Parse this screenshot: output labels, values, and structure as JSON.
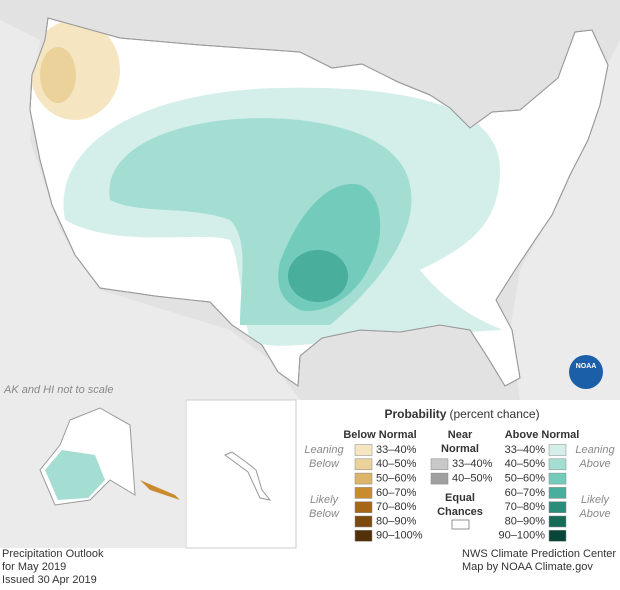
{
  "map": {
    "scale_note": "AK and HI not to scale",
    "logo": "NOAA"
  },
  "legend": {
    "title": "Probability",
    "subtitle": "(percent chance)",
    "below": {
      "header": "Below Normal",
      "leaning": [
        "Leaning",
        "Below"
      ],
      "likely": [
        "Likely",
        "Below"
      ],
      "ranges": [
        {
          "label": "33–40%",
          "color": "#f5e6c1"
        },
        {
          "label": "40–50%",
          "color": "#ebd29b"
        },
        {
          "label": "50–60%",
          "color": "#dcb56b"
        },
        {
          "label": "60–70%",
          "color": "#c98b2e"
        },
        {
          "label": "70–80%",
          "color": "#a5661a"
        },
        {
          "label": "80–90%",
          "color": "#7d4a0e"
        },
        {
          "label": "90–100%",
          "color": "#52300a"
        }
      ]
    },
    "near": {
      "header": [
        "Near",
        "Normal"
      ],
      "ranges": [
        {
          "label": "33–40%",
          "color": "#c8c8c8"
        },
        {
          "label": "40–50%",
          "color": "#a0a0a0"
        }
      ]
    },
    "equal": {
      "label": [
        "Equal",
        "Chances"
      ],
      "color": "#ffffff"
    },
    "above": {
      "header": "Above Normal",
      "leaning": [
        "Leaning",
        "Above"
      ],
      "likely": [
        "Likely",
        "Above"
      ],
      "ranges": [
        {
          "label": "33–40%",
          "color": "#d4efea"
        },
        {
          "label": "40–50%",
          "color": "#a4ded2"
        },
        {
          "label": "50–60%",
          "color": "#72cbbb"
        },
        {
          "label": "60–70%",
          "color": "#49ae9b"
        },
        {
          "label": "70–80%",
          "color": "#2b8c79"
        },
        {
          "label": "80–90%",
          "color": "#166a58"
        },
        {
          "label": "90–100%",
          "color": "#07463a"
        }
      ]
    }
  },
  "footer": {
    "left": [
      "Precipitation Outlook",
      "for May 2019",
      "Issued 30 Apr 2019"
    ],
    "right": [
      "NWS Climate Prediction Center",
      "Map by NOAA Climate.gov"
    ]
  }
}
